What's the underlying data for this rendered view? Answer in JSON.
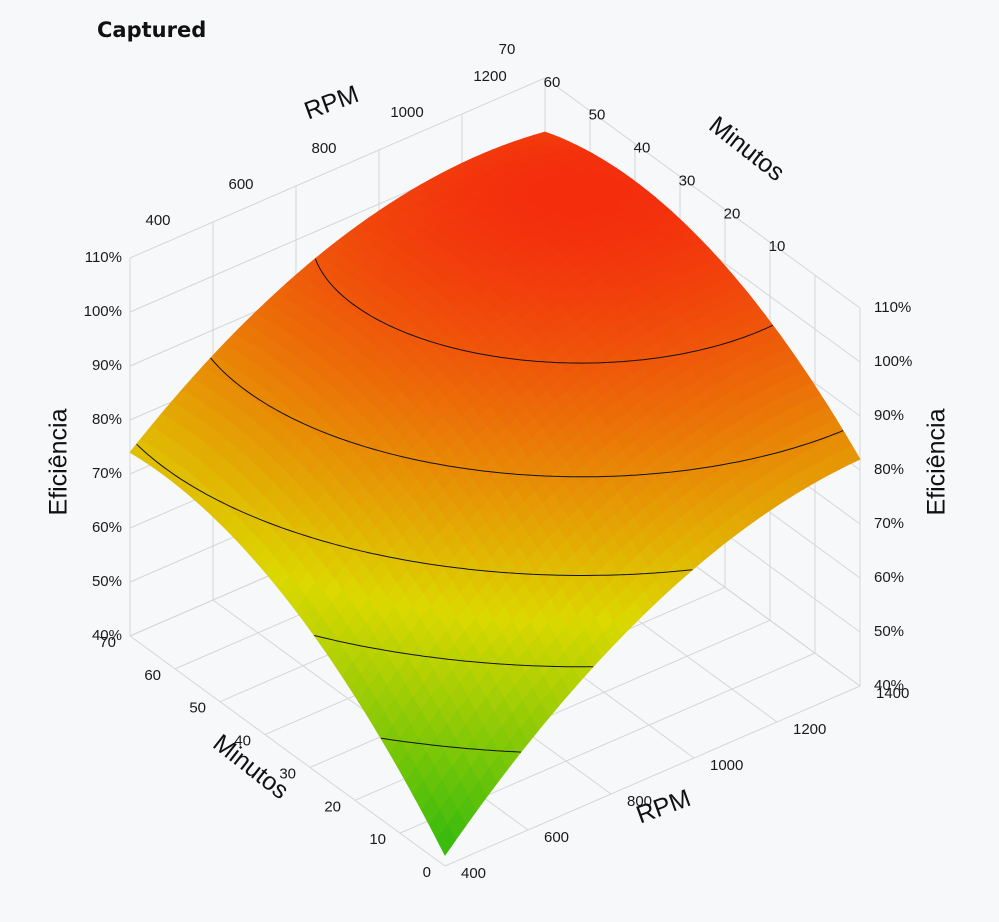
{
  "title": "Captured",
  "colors": {
    "background": "#f7f8fa",
    "grid": "#d4d6d9",
    "contour": "#111111",
    "low": "#2fb90e",
    "mid": "#dcd800",
    "high": "#f7120f"
  },
  "chart_data": {
    "type": "surface3d",
    "title": "",
    "x_axis": {
      "label": "RPM",
      "range": [
        400,
        1400
      ],
      "ticks": [
        400,
        600,
        800,
        1000,
        1200,
        1400
      ]
    },
    "y_axis": {
      "label": "Minutos",
      "range": [
        0,
        70
      ],
      "ticks": [
        0,
        10,
        20,
        30,
        40,
        50,
        60,
        70
      ]
    },
    "z_axis": {
      "label": "Eficiência",
      "range": [
        0.4,
        1.1
      ],
      "ticks": [
        "40%",
        "50%",
        "60%",
        "70%",
        "80%",
        "90%",
        "100%",
        "110%"
      ]
    },
    "grid": true,
    "contour_levels": [
      0.55,
      0.65,
      0.75,
      0.85,
      0.95,
      1.05
    ],
    "surface_samples": [
      {
        "rpm": 400,
        "minutos": 0,
        "eficiencia": 0.42
      },
      {
        "rpm": 400,
        "minutos": 70,
        "eficiencia": 0.65
      },
      {
        "rpm": 1400,
        "minutos": 0,
        "eficiencia": 0.84
      },
      {
        "rpm": 1400,
        "minutos": 70,
        "eficiencia": 0.89
      },
      {
        "rpm": 1100,
        "minutos": 45,
        "eficiencia": 1.08
      }
    ]
  }
}
